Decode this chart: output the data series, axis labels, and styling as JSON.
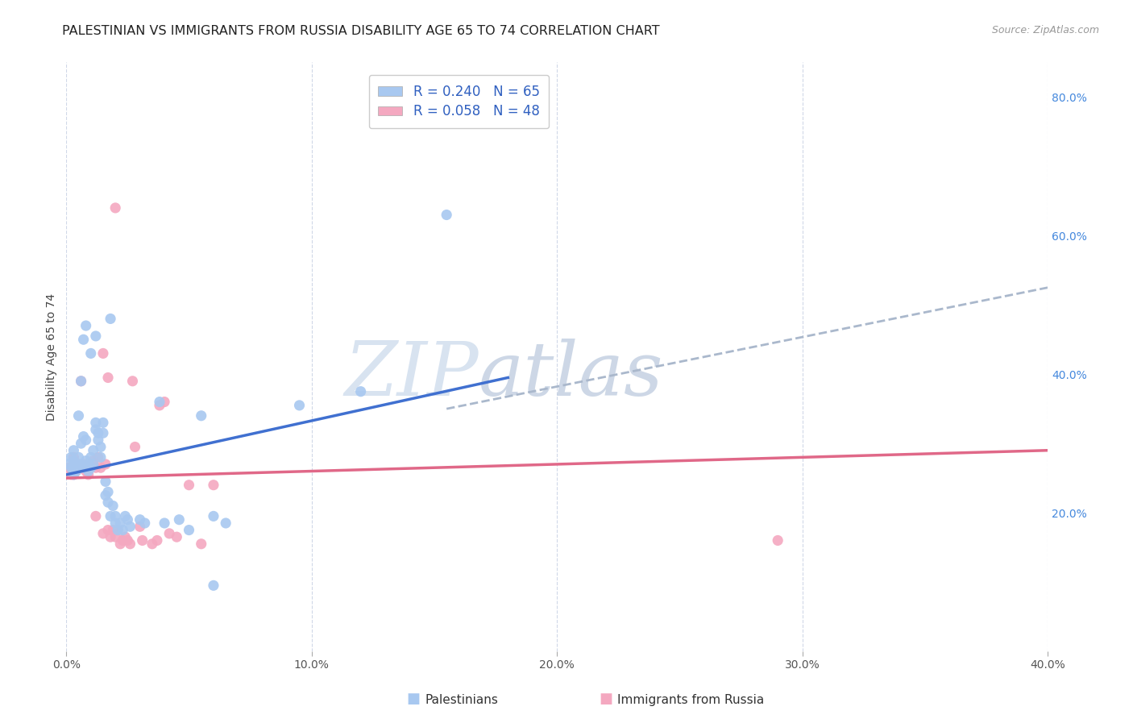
{
  "title": "PALESTINIAN VS IMMIGRANTS FROM RUSSIA DISABILITY AGE 65 TO 74 CORRELATION CHART",
  "source": "Source: ZipAtlas.com",
  "ylabel": "Disability Age 65 to 74",
  "xlim": [
    0.0,
    0.4
  ],
  "ylim": [
    0.0,
    0.85
  ],
  "xtick_labels": [
    "0.0%",
    "10.0%",
    "20.0%",
    "30.0%",
    "40.0%"
  ],
  "xtick_values": [
    0.0,
    0.1,
    0.2,
    0.3,
    0.4
  ],
  "ytick_labels": [
    "20.0%",
    "40.0%",
    "60.0%",
    "80.0%"
  ],
  "ytick_values": [
    0.2,
    0.4,
    0.6,
    0.8
  ],
  "blue_color": "#a8c8f0",
  "pink_color": "#f4a8c0",
  "blue_line_color": "#4070d0",
  "pink_line_color": "#e06888",
  "dashed_line_color": "#aab8cc",
  "legend_text_color": "#3060c0",
  "watermark_zip_color": "#c8d4e8",
  "watermark_atlas_color": "#b8c8dc",
  "blue_R": 0.24,
  "blue_N": 65,
  "pink_R": 0.058,
  "pink_N": 48,
  "blue_line": [
    0.0,
    0.255,
    0.18,
    0.395
  ],
  "pink_line": [
    0.0,
    0.25,
    0.4,
    0.29
  ],
  "dashed_line": [
    0.155,
    0.35,
    0.4,
    0.525
  ],
  "blue_scatter": [
    [
      0.001,
      0.27
    ],
    [
      0.002,
      0.265
    ],
    [
      0.002,
      0.28
    ],
    [
      0.003,
      0.255
    ],
    [
      0.003,
      0.275
    ],
    [
      0.003,
      0.29
    ],
    [
      0.004,
      0.26
    ],
    [
      0.004,
      0.27
    ],
    [
      0.005,
      0.265
    ],
    [
      0.005,
      0.28
    ],
    [
      0.005,
      0.34
    ],
    [
      0.006,
      0.27
    ],
    [
      0.006,
      0.3
    ],
    [
      0.007,
      0.265
    ],
    [
      0.007,
      0.31
    ],
    [
      0.008,
      0.275
    ],
    [
      0.008,
      0.305
    ],
    [
      0.009,
      0.26
    ],
    [
      0.009,
      0.27
    ],
    [
      0.01,
      0.265
    ],
    [
      0.01,
      0.28
    ],
    [
      0.011,
      0.27
    ],
    [
      0.011,
      0.29
    ],
    [
      0.012,
      0.32
    ],
    [
      0.012,
      0.33
    ],
    [
      0.013,
      0.315
    ],
    [
      0.013,
      0.305
    ],
    [
      0.014,
      0.295
    ],
    [
      0.014,
      0.28
    ],
    [
      0.015,
      0.315
    ],
    [
      0.015,
      0.33
    ],
    [
      0.016,
      0.225
    ],
    [
      0.016,
      0.245
    ],
    [
      0.017,
      0.215
    ],
    [
      0.017,
      0.23
    ],
    [
      0.018,
      0.195
    ],
    [
      0.018,
      0.48
    ],
    [
      0.019,
      0.21
    ],
    [
      0.02,
      0.185
    ],
    [
      0.02,
      0.195
    ],
    [
      0.021,
      0.175
    ],
    [
      0.022,
      0.185
    ],
    [
      0.023,
      0.175
    ],
    [
      0.024,
      0.195
    ],
    [
      0.025,
      0.19
    ],
    [
      0.026,
      0.18
    ],
    [
      0.03,
      0.19
    ],
    [
      0.032,
      0.185
    ],
    [
      0.038,
      0.36
    ],
    [
      0.04,
      0.185
    ],
    [
      0.046,
      0.19
    ],
    [
      0.05,
      0.175
    ],
    [
      0.055,
      0.34
    ],
    [
      0.06,
      0.195
    ],
    [
      0.065,
      0.185
    ],
    [
      0.095,
      0.355
    ],
    [
      0.12,
      0.375
    ],
    [
      0.155,
      0.63
    ],
    [
      0.006,
      0.39
    ],
    [
      0.007,
      0.45
    ],
    [
      0.008,
      0.47
    ],
    [
      0.01,
      0.43
    ],
    [
      0.012,
      0.455
    ],
    [
      0.06,
      0.095
    ],
    [
      0.003,
      0.26
    ]
  ],
  "pink_scatter": [
    [
      0.001,
      0.265
    ],
    [
      0.002,
      0.255
    ],
    [
      0.003,
      0.27
    ],
    [
      0.003,
      0.28
    ],
    [
      0.004,
      0.26
    ],
    [
      0.005,
      0.27
    ],
    [
      0.006,
      0.265
    ],
    [
      0.007,
      0.27
    ],
    [
      0.008,
      0.26
    ],
    [
      0.009,
      0.255
    ],
    [
      0.01,
      0.265
    ],
    [
      0.011,
      0.275
    ],
    [
      0.012,
      0.265
    ],
    [
      0.012,
      0.195
    ],
    [
      0.013,
      0.28
    ],
    [
      0.014,
      0.265
    ],
    [
      0.015,
      0.17
    ],
    [
      0.015,
      0.43
    ],
    [
      0.016,
      0.27
    ],
    [
      0.017,
      0.175
    ],
    [
      0.017,
      0.395
    ],
    [
      0.018,
      0.165
    ],
    [
      0.019,
      0.175
    ],
    [
      0.02,
      0.165
    ],
    [
      0.021,
      0.175
    ],
    [
      0.022,
      0.155
    ],
    [
      0.023,
      0.16
    ],
    [
      0.024,
      0.165
    ],
    [
      0.025,
      0.16
    ],
    [
      0.026,
      0.155
    ],
    [
      0.027,
      0.39
    ],
    [
      0.028,
      0.295
    ],
    [
      0.03,
      0.18
    ],
    [
      0.031,
      0.16
    ],
    [
      0.035,
      0.155
    ],
    [
      0.037,
      0.16
    ],
    [
      0.038,
      0.355
    ],
    [
      0.04,
      0.36
    ],
    [
      0.042,
      0.17
    ],
    [
      0.045,
      0.165
    ],
    [
      0.05,
      0.24
    ],
    [
      0.055,
      0.155
    ],
    [
      0.06,
      0.24
    ],
    [
      0.02,
      0.64
    ],
    [
      0.29,
      0.16
    ],
    [
      0.003,
      0.255
    ],
    [
      0.004,
      0.27
    ],
    [
      0.006,
      0.39
    ]
  ],
  "background_color": "#ffffff",
  "grid_color": "#d0d8e8",
  "title_fontsize": 11.5,
  "axis_label_fontsize": 10,
  "tick_fontsize": 10,
  "legend_fontsize": 12,
  "source_fontsize": 9
}
